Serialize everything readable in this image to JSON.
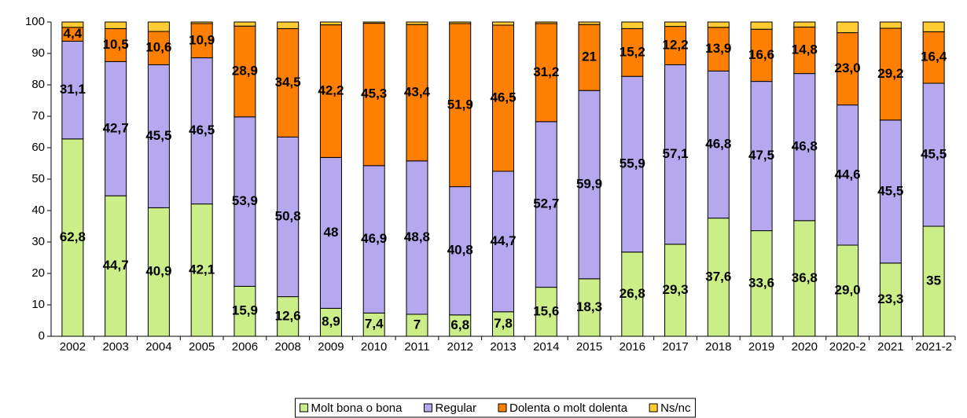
{
  "chart_data": {
    "type": "bar",
    "stacked": true,
    "legend": "bottom",
    "categories": [
      "2002",
      "2003",
      "2004",
      "2005",
      "2006",
      "2008",
      "2009",
      "2010",
      "2011",
      "2012",
      "2013",
      "2014",
      "2015",
      "2016",
      "2017",
      "2018",
      "2019",
      "2020",
      "2020-2",
      "2021",
      "2021-2"
    ],
    "series": [
      {
        "name": "Molt bona o bona",
        "color": "#ccee88",
        "values": [
          62.8,
          44.7,
          40.9,
          42.1,
          15.9,
          12.6,
          8.9,
          7.4,
          7,
          6.8,
          7.8,
          15.6,
          18.3,
          26.8,
          29.3,
          37.6,
          33.6,
          36.8,
          29.0,
          23.3,
          35
        ],
        "value_labels": [
          "62,8",
          "44,7",
          "40,9",
          "42,1",
          "15,9",
          "12,6",
          "8,9",
          "7,4",
          "7",
          "6,8",
          "7,8",
          "15,6",
          "18,3",
          "26,8",
          "29,3",
          "37,6",
          "33,6",
          "36,8",
          "29,0",
          "23,3",
          "35"
        ]
      },
      {
        "name": "Regular",
        "color": "#b6a8ee",
        "values": [
          31.1,
          42.7,
          45.5,
          46.5,
          53.9,
          50.8,
          48,
          46.9,
          48.8,
          40.8,
          44.7,
          52.7,
          59.9,
          55.9,
          57.1,
          46.8,
          47.5,
          46.8,
          44.6,
          45.5,
          45.5
        ],
        "value_labels": [
          "31,1",
          "42,7",
          "45,5",
          "46,5",
          "53,9",
          "50,8",
          "48",
          "46,9",
          "48,8",
          "40,8",
          "44,7",
          "52,7",
          "59,9",
          "55,9",
          "57,1",
          "46,8",
          "47,5",
          "46,8",
          "44,6",
          "45,5",
          "45,5"
        ]
      },
      {
        "name": "Dolenta o molt dolenta",
        "color": "#ff8000",
        "values": [
          4.4,
          10.5,
          10.6,
          10.9,
          28.9,
          34.5,
          42.2,
          45.3,
          43.4,
          51.9,
          46.5,
          31.2,
          21,
          15.2,
          12.2,
          13.9,
          16.6,
          14.8,
          23.0,
          29.2,
          16.4
        ],
        "value_labels": [
          "4,4",
          "10,5",
          "10,6",
          "10,9",
          "28,9",
          "34,5",
          "42,2",
          "45,3",
          "43,4",
          "51,9",
          "46,5",
          "31,2",
          "21",
          "15,2",
          "12,2",
          "13,9",
          "16,6",
          "14,8",
          "23,0",
          "29,2",
          "16,4"
        ]
      },
      {
        "name": "Ns/nc",
        "color": "#ffcc33",
        "values": [
          1.7,
          2.1,
          3.0,
          0.5,
          1.3,
          2.1,
          0.9,
          0.4,
          0.8,
          0.5,
          1.0,
          0.5,
          0.8,
          2.1,
          1.4,
          1.7,
          2.3,
          1.6,
          3.4,
          2.0,
          3.1
        ]
      }
    ],
    "ylim": [
      0,
      100
    ],
    "yticks": [
      0,
      10,
      20,
      30,
      40,
      50,
      60,
      70,
      80,
      90,
      100
    ]
  }
}
